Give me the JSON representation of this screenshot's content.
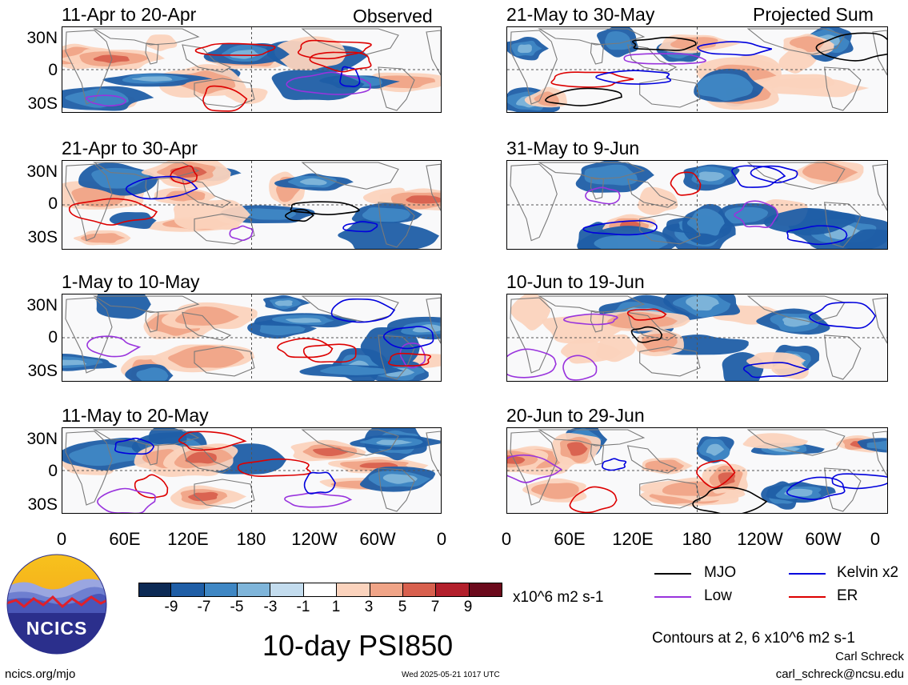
{
  "header": {
    "left_label": "Observed",
    "right_label": "Projected Sum"
  },
  "panels": [
    {
      "title": "11-Apr to 20-Apr"
    },
    {
      "title": "21-Apr to 30-Apr"
    },
    {
      "title": "1-May to 10-May"
    },
    {
      "title": "11-May to 20-May"
    },
    {
      "title": "21-May to 30-May"
    },
    {
      "title": "31-May to 9-Jun"
    },
    {
      "title": "10-Jun to 19-Jun"
    },
    {
      "title": "20-Jun to 29-Jun"
    }
  ],
  "axes": {
    "y_ticks": [
      "30N",
      "0",
      "30S"
    ],
    "x_ticks": [
      "0",
      "60E",
      "120E",
      "180",
      "120W",
      "60W",
      "0"
    ]
  },
  "colorbar": {
    "labels": [
      "-9",
      "-7",
      "-5",
      "-3",
      "-1",
      "1",
      "3",
      "5",
      "7",
      "9"
    ],
    "colors": [
      "#0c2a55",
      "#1f5ea6",
      "#3f87c4",
      "#7fb5da",
      "#c3dcee",
      "#ffffff",
      "#fbd3bd",
      "#f0a487",
      "#d8604e",
      "#b3202c",
      "#6b0a1c"
    ],
    "units": "x10^6 m2 s-1"
  },
  "legend": [
    {
      "label": "MJO",
      "color": "#000000"
    },
    {
      "label": "Kelvin x2",
      "color": "#0000dd"
    },
    {
      "label": "Low",
      "color": "#9933dd"
    },
    {
      "label": "ER",
      "color": "#dd0000"
    }
  ],
  "contour_note": "Contours at 2, 6 x10^6 m2 s-1",
  "main_title": "10-day PSI850",
  "logo": {
    "text": "NCICS"
  },
  "footer": {
    "url": "ncics.org/mjo",
    "timestamp": "Wed 2025-05-21 1017 UTC",
    "author": "Carl Schreck",
    "email": "carl_schreck@ncsu.edu"
  }
}
